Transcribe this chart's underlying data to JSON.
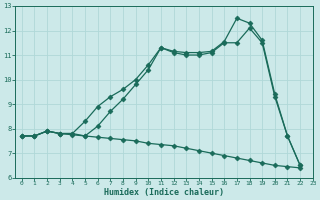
{
  "xlabel": "Humidex (Indice chaleur)",
  "xlim": [
    -0.5,
    23
  ],
  "ylim": [
    6,
    13
  ],
  "yticks": [
    6,
    7,
    8,
    9,
    10,
    11,
    12,
    13
  ],
  "xticks": [
    0,
    1,
    2,
    3,
    4,
    5,
    6,
    7,
    8,
    9,
    10,
    11,
    12,
    13,
    14,
    15,
    16,
    17,
    18,
    19,
    20,
    21,
    22,
    23
  ],
  "bg_color": "#cce9e9",
  "grid_color": "#b0d8d8",
  "line_color": "#1a6b5a",
  "line1_x": [
    0,
    1,
    2,
    3,
    4,
    5,
    6,
    7,
    8,
    9,
    10,
    11,
    12,
    13,
    14,
    15,
    16,
    17,
    18,
    19,
    20,
    21,
    22
  ],
  "line1_y": [
    7.7,
    7.7,
    7.9,
    7.8,
    7.8,
    8.3,
    8.9,
    9.3,
    9.6,
    10.0,
    10.6,
    11.3,
    11.15,
    11.1,
    11.1,
    11.15,
    11.55,
    12.5,
    12.3,
    11.6,
    9.4,
    7.7,
    6.5
  ],
  "line2_x": [
    0,
    1,
    2,
    3,
    4,
    5,
    6,
    7,
    8,
    9,
    10,
    11,
    12,
    13,
    14,
    15,
    16,
    17,
    18,
    19,
    20,
    21,
    22
  ],
  "line2_y": [
    7.7,
    7.7,
    7.9,
    7.8,
    7.8,
    7.7,
    8.1,
    8.7,
    9.2,
    9.8,
    10.4,
    11.3,
    11.1,
    11.0,
    11.0,
    11.1,
    11.5,
    11.5,
    12.1,
    11.5,
    9.3,
    7.7,
    6.5
  ],
  "line3_x": [
    0,
    1,
    2,
    3,
    4,
    5,
    6,
    7,
    8,
    9,
    10,
    11,
    12,
    13,
    14,
    15,
    16,
    17,
    18,
    19,
    20,
    21,
    22
  ],
  "line3_y": [
    7.7,
    7.7,
    7.9,
    7.8,
    7.75,
    7.7,
    7.65,
    7.6,
    7.55,
    7.5,
    7.4,
    7.35,
    7.3,
    7.2,
    7.1,
    7.0,
    6.9,
    6.8,
    6.7,
    6.6,
    6.5,
    6.45,
    6.4
  ]
}
